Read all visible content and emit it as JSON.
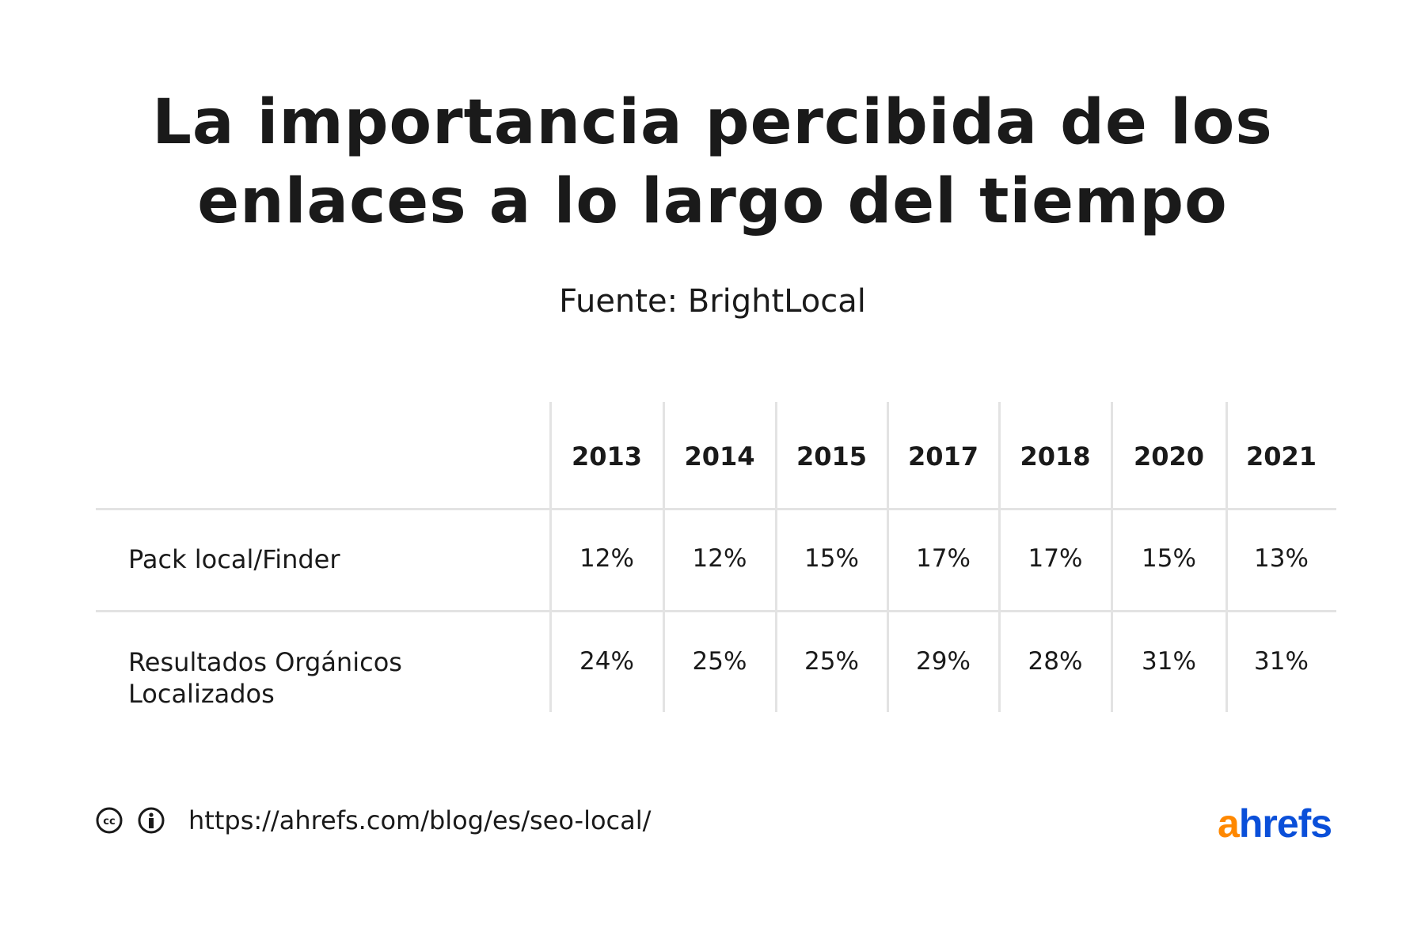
{
  "title_line1": "La importancia percibida de los",
  "title_line2": "enlaces a lo largo del tiempo",
  "subtitle": "Fuente: BrightLocal",
  "table": {
    "columns": [
      "2013",
      "2014",
      "2015",
      "2017",
      "2018",
      "2020",
      "2021"
    ],
    "rows": [
      {
        "label_line1": "Pack local/Finder",
        "label_line2": "",
        "values": [
          "12%",
          "12%",
          "15%",
          "17%",
          "17%",
          "15%",
          "13%"
        ]
      },
      {
        "label_line1": "Resultados Orgánicos",
        "label_line2": "Localizados",
        "values": [
          "24%",
          "25%",
          "25%",
          "29%",
          "28%",
          "31%",
          "31%"
        ]
      }
    ]
  },
  "footer": {
    "url": "https://ahrefs.com/blog/es/seo-local/",
    "icons": [
      "creative-commons-icon",
      "attribution-icon"
    ],
    "logo": {
      "part1": "a",
      "part2": "hrefs",
      "color1": "#ff8800",
      "color2": "#0a4fd9"
    }
  }
}
